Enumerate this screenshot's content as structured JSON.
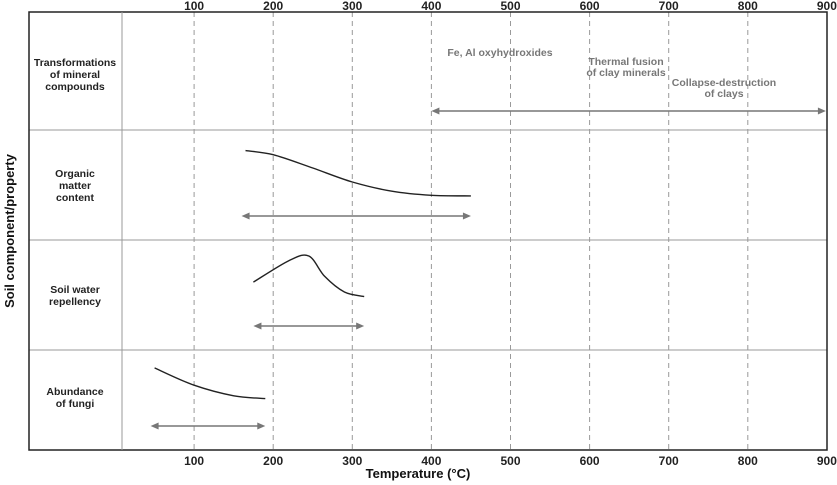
{
  "axes": {
    "x_label": "Temperature (°C)",
    "y_label": "Soil component/property",
    "x_ticks": [
      "100",
      "200",
      "300",
      "400",
      "500",
      "600",
      "700",
      "800",
      "900"
    ]
  },
  "rows": [
    {
      "id": "transformations",
      "label_lines": [
        "Transformations",
        "of mineral",
        "compounds"
      ]
    },
    {
      "id": "organic",
      "label_lines": [
        "Organic",
        "matter",
        "content"
      ]
    },
    {
      "id": "repellency",
      "label_lines": [
        "Soil water",
        "repellency"
      ]
    },
    {
      "id": "fungi",
      "label_lines": [
        "Abundance",
        "of fungi"
      ]
    }
  ],
  "annotations": [
    {
      "id": "fe-al",
      "lines": [
        "Fe, Al oxyhydroxides"
      ]
    },
    {
      "id": "clay-fusion",
      "lines": [
        "Thermal fusion",
        "of clay minerals"
      ]
    },
    {
      "id": "clay-collapse",
      "lines": [
        "Collapse-destruction",
        "of clays"
      ]
    }
  ],
  "chart_data": {
    "type": "line",
    "x_range": [
      0,
      900
    ],
    "x_unit": "°C",
    "series": [
      {
        "row": "organic",
        "points": [
          [
            165,
            0.92
          ],
          [
            200,
            0.85
          ],
          [
            250,
            0.62
          ],
          [
            300,
            0.38
          ],
          [
            350,
            0.22
          ],
          [
            400,
            0.15
          ],
          [
            450,
            0.14
          ]
        ],
        "range": [
          160,
          450
        ]
      },
      {
        "row": "repellency",
        "points": [
          [
            175,
            0.55
          ],
          [
            220,
            0.92
          ],
          [
            245,
            1.0
          ],
          [
            265,
            0.65
          ],
          [
            290,
            0.38
          ],
          [
            315,
            0.3
          ]
        ],
        "range": [
          175,
          315
        ]
      },
      {
        "row": "fungi",
        "points": [
          [
            50,
            0.96
          ],
          [
            100,
            0.6
          ],
          [
            150,
            0.38
          ],
          [
            190,
            0.32
          ]
        ],
        "range": [
          45,
          190
        ]
      }
    ],
    "mineral_range": [
      400,
      900
    ]
  }
}
